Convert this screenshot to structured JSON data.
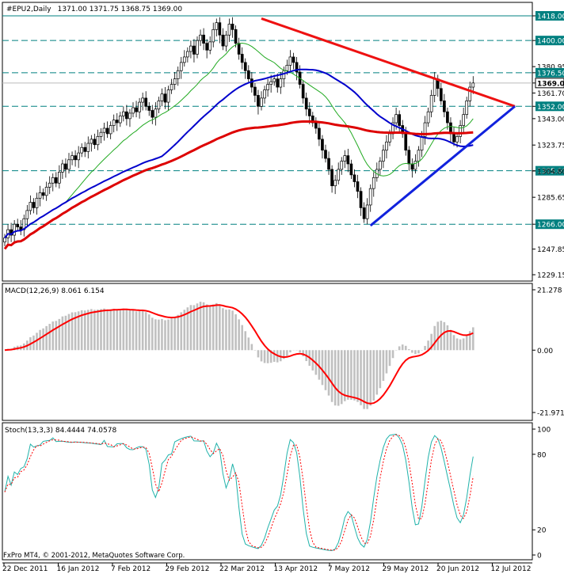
{
  "chart_data": [
    {
      "type": "candlestick",
      "title": "#EPU2,Daily",
      "ohlc_label": "1371.00 1371.75 1368.75 1369.00",
      "y_ticks": [
        "1418.00",
        "1400.00",
        "1380.95",
        "1376.50",
        "1369.00",
        "1361.70",
        "1352.00",
        "1343.00",
        "1323.75",
        "1305.00",
        "1304.80",
        "1285.65",
        "1266.00",
        "1247.85",
        "1229.15"
      ],
      "y_range": [
        1229.15,
        1418.0
      ],
      "price_levels": [
        {
          "value": 1418.0,
          "label": "1418.00",
          "style": "solid",
          "color": "#008080"
        },
        {
          "value": 1400.0,
          "label": "1400.00",
          "style": "dashed",
          "color": "#008080"
        },
        {
          "value": 1376.5,
          "label": "1376.50",
          "style": "dashed",
          "color": "#008080"
        },
        {
          "value": 1352.0,
          "label": "1352.00",
          "style": "dashed",
          "color": "#008080"
        },
        {
          "value": 1305.0,
          "label": "1305.00",
          "style": "dashed",
          "color": "#008080"
        },
        {
          "value": 1266.0,
          "label": "1266.00",
          "style": "dashed",
          "color": "#008080"
        }
      ],
      "current_price": {
        "value": 1369.0,
        "label": "1369.00"
      },
      "x_labels": [
        "22 Dec 2011",
        "16 Jan 2012",
        "7 Feb 2012",
        "29 Feb 2012",
        "22 Mar 2012",
        "13 Apr 2012",
        "7 May 2012",
        "29 May 2012",
        "20 Jun 2012",
        "12 Jul 2012"
      ],
      "close": [
        1256,
        1262,
        1258,
        1266,
        1264,
        1262,
        1270,
        1276,
        1282,
        1278,
        1285,
        1289,
        1287,
        1293,
        1296,
        1300,
        1296,
        1304,
        1310,
        1306,
        1313,
        1316,
        1313,
        1318,
        1322,
        1319,
        1325,
        1328,
        1324,
        1330,
        1333,
        1336,
        1332,
        1338,
        1342,
        1340,
        1345,
        1348,
        1343,
        1347,
        1351,
        1348,
        1355,
        1358,
        1352,
        1349,
        1344,
        1350,
        1356,
        1361,
        1355,
        1364,
        1368,
        1372,
        1378,
        1384,
        1388,
        1392,
        1396,
        1390,
        1400,
        1404,
        1398,
        1393,
        1399,
        1408,
        1413,
        1404,
        1396,
        1404,
        1412,
        1408,
        1398,
        1390,
        1384,
        1378,
        1372,
        1366,
        1360,
        1352,
        1358,
        1364,
        1368,
        1370,
        1372,
        1366,
        1372,
        1378,
        1382,
        1388,
        1384,
        1377,
        1368,
        1358,
        1350,
        1345,
        1340,
        1336,
        1328,
        1320,
        1314,
        1306,
        1294,
        1298,
        1306,
        1312,
        1316,
        1310,
        1302,
        1297,
        1290,
        1278,
        1270,
        1280,
        1292,
        1300,
        1306,
        1312,
        1320,
        1326,
        1332,
        1340,
        1346,
        1338,
        1332,
        1320,
        1310,
        1306,
        1312,
        1320,
        1330,
        1340,
        1348,
        1360,
        1372,
        1365,
        1356,
        1348,
        1340,
        1332,
        1326,
        1330,
        1338,
        1346,
        1356,
        1366,
        1369
      ]
    },
    {
      "type": "histogram-line",
      "title": "MACD(12,26,9) 8.061 6.154",
      "y_ticks": [
        "21.278",
        "0.00",
        "-21.971"
      ],
      "y_range": [
        -21.971,
        21.278
      ],
      "series": [
        {
          "name": "MACD",
          "color": "#c0c0c0"
        },
        {
          "name": "Signal",
          "color": "#ff0000"
        }
      ]
    },
    {
      "type": "line",
      "title": "Stoch(13,3,3) 84.4444 74.0578",
      "y_ticks": [
        "100",
        "80",
        "20",
        "0"
      ],
      "y_range": [
        0,
        100
      ],
      "series": [
        {
          "name": "%K",
          "color": "#20b2aa"
        },
        {
          "name": "%D",
          "color": "#ff0000"
        }
      ]
    }
  ],
  "footer": "FxPro MT4, © 2001-2012, MetaQuotes Software Corp.",
  "colors": {
    "ma_fast": "#22aa22",
    "ma_mid": "#0000cc",
    "ma_slow": "#dd0000",
    "trend_down": "#ee1111",
    "trend_up": "#1122dd",
    "bg": "#ffffff",
    "frame": "#000000"
  }
}
